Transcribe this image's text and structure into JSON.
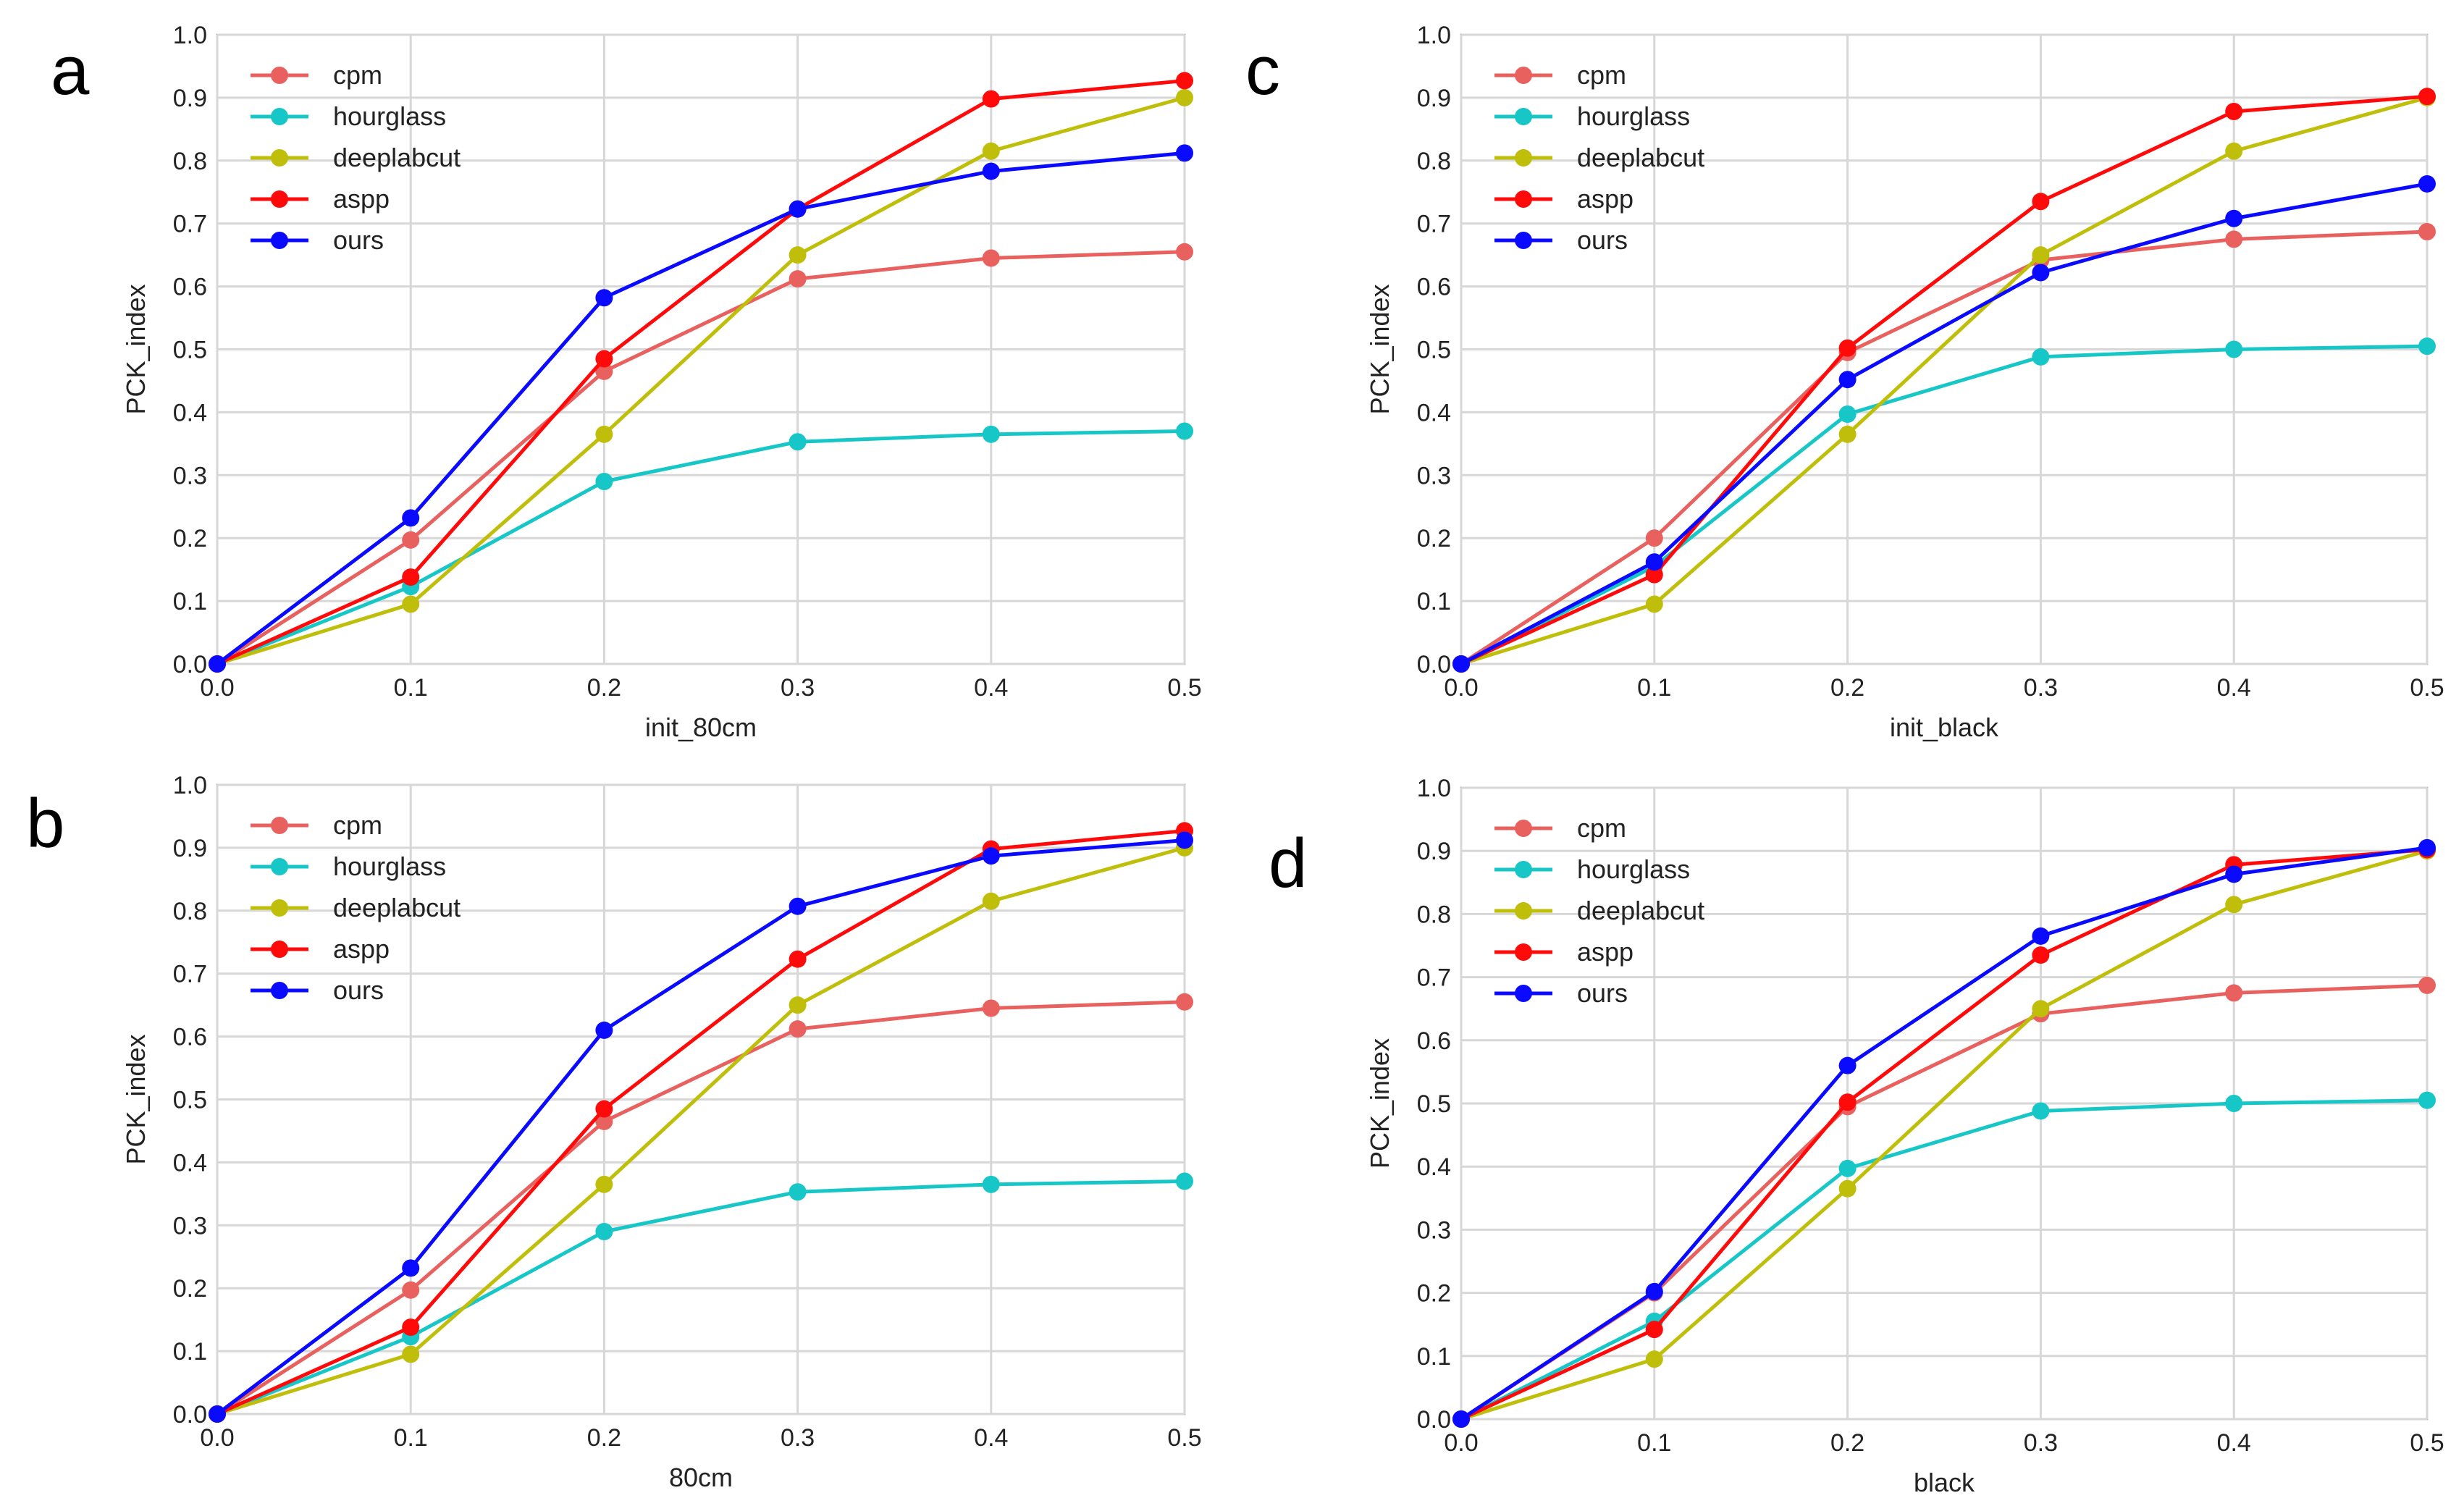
{
  "chart_data": [
    {
      "type": "line",
      "panel_label": "a",
      "title": "",
      "xlabel": "init_80cm",
      "ylabel": "PCK_index",
      "xlim": [
        0.0,
        0.5
      ],
      "ylim": [
        0.0,
        1.0
      ],
      "x_ticks": [
        "0.0",
        "0.1",
        "0.2",
        "0.3",
        "0.4",
        "0.5"
      ],
      "y_ticks": [
        "0.0",
        "0.1",
        "0.2",
        "0.3",
        "0.4",
        "0.5",
        "0.6",
        "0.7",
        "0.8",
        "0.9",
        "1.0"
      ],
      "grid": true,
      "legend_position": "top-left",
      "x": [
        0.0,
        0.1,
        0.2,
        0.3,
        0.4,
        0.5
      ],
      "series": [
        {
          "name": "cpm",
          "color": "#E8615F",
          "values": [
            0.0,
            0.197,
            0.465,
            0.612,
            0.645,
            0.655
          ]
        },
        {
          "name": "hourglass",
          "color": "#17C6C6",
          "values": [
            0.0,
            0.123,
            0.29,
            0.353,
            0.365,
            0.37
          ]
        },
        {
          "name": "deeplabcut",
          "color": "#BFBF0B",
          "values": [
            0.0,
            0.095,
            0.365,
            0.65,
            0.815,
            0.9
          ]
        },
        {
          "name": "aspp",
          "color": "#FF0A0A",
          "values": [
            0.0,
            0.138,
            0.485,
            0.723,
            0.898,
            0.927
          ]
        },
        {
          "name": "ours",
          "color": "#0A0AFF",
          "values": [
            0.0,
            0.232,
            0.582,
            0.723,
            0.783,
            0.812
          ]
        }
      ]
    },
    {
      "type": "line",
      "panel_label": "b",
      "title": "",
      "xlabel": "80cm",
      "ylabel": "PCK_index",
      "xlim": [
        0.0,
        0.5
      ],
      "ylim": [
        0.0,
        1.0
      ],
      "x_ticks": [
        "0.0",
        "0.1",
        "0.2",
        "0.3",
        "0.4",
        "0.5"
      ],
      "y_ticks": [
        "0.0",
        "0.1",
        "0.2",
        "0.3",
        "0.4",
        "0.5",
        "0.6",
        "0.7",
        "0.8",
        "0.9",
        "1.0"
      ],
      "grid": true,
      "legend_position": "top-left",
      "x": [
        0.0,
        0.1,
        0.2,
        0.3,
        0.4,
        0.5
      ],
      "series": [
        {
          "name": "cpm",
          "color": "#E8615F",
          "values": [
            0.0,
            0.197,
            0.465,
            0.612,
            0.645,
            0.655
          ]
        },
        {
          "name": "hourglass",
          "color": "#17C6C6",
          "values": [
            0.0,
            0.123,
            0.29,
            0.353,
            0.365,
            0.37
          ]
        },
        {
          "name": "deeplabcut",
          "color": "#BFBF0B",
          "values": [
            0.0,
            0.095,
            0.365,
            0.65,
            0.815,
            0.9
          ]
        },
        {
          "name": "aspp",
          "color": "#FF0A0A",
          "values": [
            0.0,
            0.138,
            0.485,
            0.723,
            0.898,
            0.927
          ]
        },
        {
          "name": "ours",
          "color": "#0A0AFF",
          "values": [
            0.0,
            0.232,
            0.61,
            0.807,
            0.887,
            0.912
          ]
        }
      ]
    },
    {
      "type": "line",
      "panel_label": "c",
      "title": "",
      "xlabel": "init_black",
      "ylabel": "PCK_index",
      "xlim": [
        0.0,
        0.5
      ],
      "ylim": [
        0.0,
        1.0
      ],
      "x_ticks": [
        "0.0",
        "0.1",
        "0.2",
        "0.3",
        "0.4",
        "0.5"
      ],
      "y_ticks": [
        "0.0",
        "0.1",
        "0.2",
        "0.3",
        "0.4",
        "0.5",
        "0.6",
        "0.7",
        "0.8",
        "0.9",
        "1.0"
      ],
      "grid": true,
      "legend_position": "top-left",
      "x": [
        0.0,
        0.1,
        0.2,
        0.3,
        0.4,
        0.5
      ],
      "series": [
        {
          "name": "cpm",
          "color": "#E8615F",
          "values": [
            0.0,
            0.2,
            0.495,
            0.642,
            0.675,
            0.687
          ]
        },
        {
          "name": "hourglass",
          "color": "#17C6C6",
          "values": [
            0.0,
            0.155,
            0.397,
            0.488,
            0.5,
            0.505
          ]
        },
        {
          "name": "deeplabcut",
          "color": "#BFBF0B",
          "values": [
            0.0,
            0.095,
            0.365,
            0.65,
            0.815,
            0.9
          ]
        },
        {
          "name": "aspp",
          "color": "#FF0A0A",
          "values": [
            0.0,
            0.142,
            0.502,
            0.735,
            0.878,
            0.902
          ]
        },
        {
          "name": "ours",
          "color": "#0A0AFF",
          "values": [
            0.0,
            0.162,
            0.452,
            0.622,
            0.708,
            0.763
          ]
        }
      ]
    },
    {
      "type": "line",
      "panel_label": "d",
      "title": "",
      "xlabel": "black",
      "ylabel": "PCK_index",
      "xlim": [
        0.0,
        0.5
      ],
      "ylim": [
        0.0,
        1.0
      ],
      "x_ticks": [
        "0.0",
        "0.1",
        "0.2",
        "0.3",
        "0.4",
        "0.5"
      ],
      "y_ticks": [
        "0.0",
        "0.1",
        "0.2",
        "0.3",
        "0.4",
        "0.5",
        "0.6",
        "0.7",
        "0.8",
        "0.9",
        "1.0"
      ],
      "grid": true,
      "legend_position": "top-left",
      "x": [
        0.0,
        0.1,
        0.2,
        0.3,
        0.4,
        0.5
      ],
      "series": [
        {
          "name": "cpm",
          "color": "#E8615F",
          "values": [
            0.0,
            0.2,
            0.495,
            0.642,
            0.675,
            0.687
          ]
        },
        {
          "name": "hourglass",
          "color": "#17C6C6",
          "values": [
            0.0,
            0.155,
            0.397,
            0.488,
            0.5,
            0.505
          ]
        },
        {
          "name": "deeplabcut",
          "color": "#BFBF0B",
          "values": [
            0.0,
            0.095,
            0.365,
            0.65,
            0.815,
            0.9
          ]
        },
        {
          "name": "aspp",
          "color": "#FF0A0A",
          "values": [
            0.0,
            0.142,
            0.502,
            0.735,
            0.878,
            0.902
          ]
        },
        {
          "name": "ours",
          "color": "#0A0AFF",
          "values": [
            0.0,
            0.202,
            0.56,
            0.765,
            0.863,
            0.905
          ]
        }
      ]
    }
  ]
}
